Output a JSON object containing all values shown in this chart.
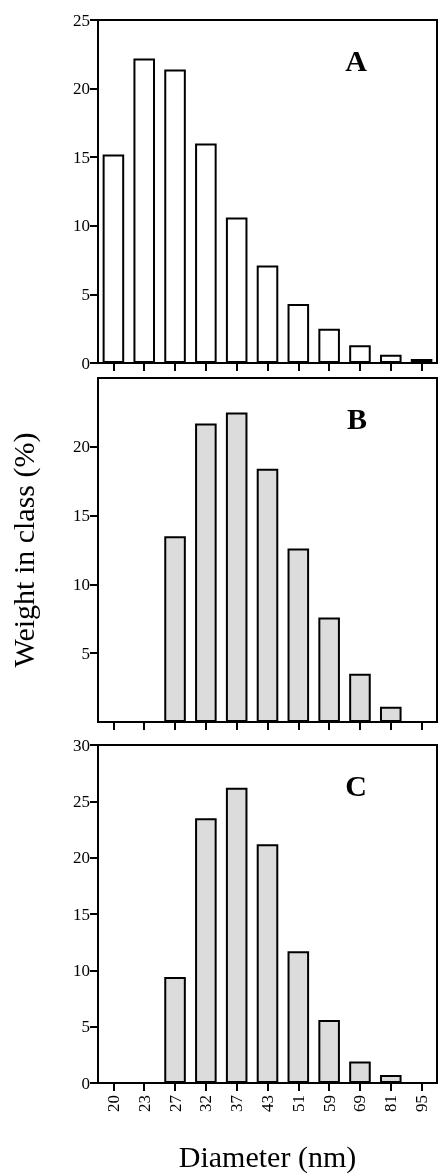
{
  "chart_data": [
    {
      "type": "bar",
      "annotations": [
        "A"
      ],
      "categories": [
        "20",
        "23",
        "27",
        "32",
        "37",
        "43",
        "51",
        "59",
        "69",
        "81",
        "95"
      ],
      "color": "#ffffff",
      "values": [
        15.2,
        22.2,
        21.4,
        16.0,
        10.6,
        7.1,
        4.3,
        2.5,
        1.3,
        0.6,
        0.3
      ],
      "ylim": [
        0,
        25
      ],
      "yticks": [
        0,
        5,
        10,
        15,
        20,
        25
      ],
      "tick_labels": "y"
    },
    {
      "type": "bar",
      "annotations": [
        "B"
      ],
      "ylabel": "Weight in class (%)",
      "categories": [
        "20",
        "23",
        "27",
        "32",
        "37",
        "43",
        "51",
        "59",
        "69",
        "81",
        "95"
      ],
      "color": "#dcdcdc",
      "values": [
        null,
        null,
        13.5,
        21.7,
        22.5,
        18.4,
        12.6,
        7.6,
        3.5,
        1.1,
        null
      ],
      "ylim": [
        0,
        25
      ],
      "yticks": [
        5,
        10,
        15,
        20
      ],
      "tick_labels": "y"
    },
    {
      "type": "bar",
      "annotations": [
        "C"
      ],
      "xlabel": "Diameter (nm)",
      "categories": [
        "20",
        "23",
        "27",
        "32",
        "37",
        "43",
        "51",
        "59",
        "69",
        "81",
        "95"
      ],
      "color": "#dcdcdc",
      "values": [
        null,
        null,
        9.4,
        23.5,
        26.2,
        21.2,
        11.7,
        5.6,
        1.9,
        0.7,
        null
      ],
      "ylim": [
        0,
        30
      ],
      "yticks": [
        0,
        5,
        10,
        15,
        20,
        25,
        30
      ]
    }
  ]
}
